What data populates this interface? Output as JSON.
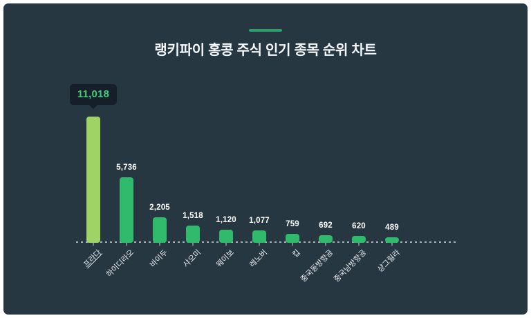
{
  "header": {
    "title": "랭키파이 홍콩 주식 인기 종목 순위 차트"
  },
  "colors": {
    "page_background": "#ffffff",
    "panel_background": "#273742",
    "accent": "#2f9e68",
    "bar_default": "#31b96c",
    "bar_highlight": "#9fd365",
    "value_label": "#ffffff",
    "category_label": "#e8edf0",
    "baseline": "#a9b3ba",
    "title_text": "#f5f8fa",
    "tooltip_background": "#141f29",
    "tooltip_text": "#3ecf7e"
  },
  "tooltip": {
    "value": "11,018"
  },
  "chart_data": {
    "type": "bar",
    "title": "랭키파이 홍콩 주식 인기 종목 순위 차트",
    "categories": [
      "프라다",
      "하이디라오",
      "바이두",
      "샤오미",
      "웨이보",
      "레노버",
      "킵",
      "중국동방항공",
      "중국남방항공",
      "샹그릴라"
    ],
    "values": [
      11018,
      5736,
      2205,
      1518,
      1120,
      1077,
      759,
      692,
      620,
      489
    ],
    "value_labels": [
      "11,018",
      "5,736",
      "2,205",
      "1,518",
      "1,120",
      "1,077",
      "759",
      "692",
      "620",
      "489"
    ],
    "highlight_index": 0,
    "highlighted_category": "프라다",
    "ylim": [
      0,
      11018
    ],
    "xlabel": "",
    "ylabel": "",
    "grid": false,
    "legend": false,
    "baseline_style": "dashed",
    "x_label_rotation": -45
  }
}
